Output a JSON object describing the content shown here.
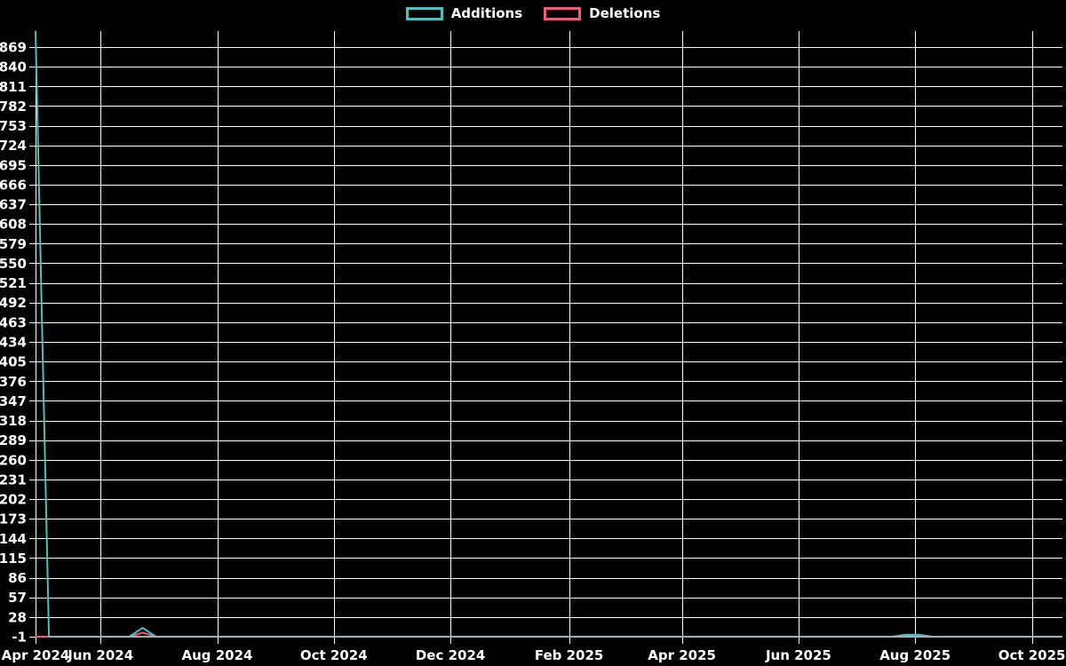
{
  "chart_data": {
    "type": "line",
    "title": "",
    "description": "Weekly additions and deletions contribution graph on black background",
    "legend_position": "top-center",
    "grid": true,
    "legend": [
      {
        "label": "Additions",
        "color": "#4bc0c0"
      },
      {
        "label": "Deletions",
        "color": "#ec5d7d"
      }
    ],
    "x_axis": {
      "tick_labels": [
        "Apr 2024",
        "Jun 2024",
        "Aug 2024",
        "Oct 2024",
        "Dec 2024",
        "Feb 2025",
        "Apr 2025",
        "Jun 2025",
        "Aug 2025",
        "Oct 2025"
      ],
      "tick_dates": [
        "2024-04-28",
        "2024-06-01",
        "2024-08-01",
        "2024-10-01",
        "2024-12-01",
        "2025-02-01",
        "2025-04-01",
        "2025-06-01",
        "2025-08-01",
        "2025-10-01"
      ],
      "start_date": "2024-04-28",
      "end_date": "2025-10-17"
    },
    "y_axis": {
      "tick_labels": [
        "-1",
        "28",
        "57",
        "86",
        "115",
        "144",
        "173",
        "202",
        "231",
        "260",
        "289",
        "318",
        "347",
        "376",
        "405",
        "434",
        "463",
        "492",
        "521",
        "550",
        "579",
        "608",
        "637",
        "666",
        "695",
        "724",
        "753",
        "782",
        "811",
        "840",
        "869"
      ],
      "tick_step": 29,
      "min": -1,
      "grid_max": 869,
      "plot_max": 893
    },
    "sampling": "weekly",
    "first_week": "2024-04-28",
    "last_week": "2025-10-12",
    "baseline_value": -1,
    "series": [
      {
        "name": "Additions",
        "color": "#4bc0c0",
        "points": {
          "2024-04-28": 893,
          "2024-06-23": 12,
          "2025-07-27": 2,
          "2025-08-03": 2
        }
      },
      {
        "name": "Deletions",
        "color": "#ec5d7d",
        "points": {
          "2024-06-23": 5,
          "2025-07-27": 0,
          "2025-08-03": 0
        }
      }
    ]
  },
  "colors": {
    "background": "#000000",
    "grid": "#ffffff",
    "tick_text": "#ffffff",
    "baseline_line": "#a3aeb8"
  }
}
